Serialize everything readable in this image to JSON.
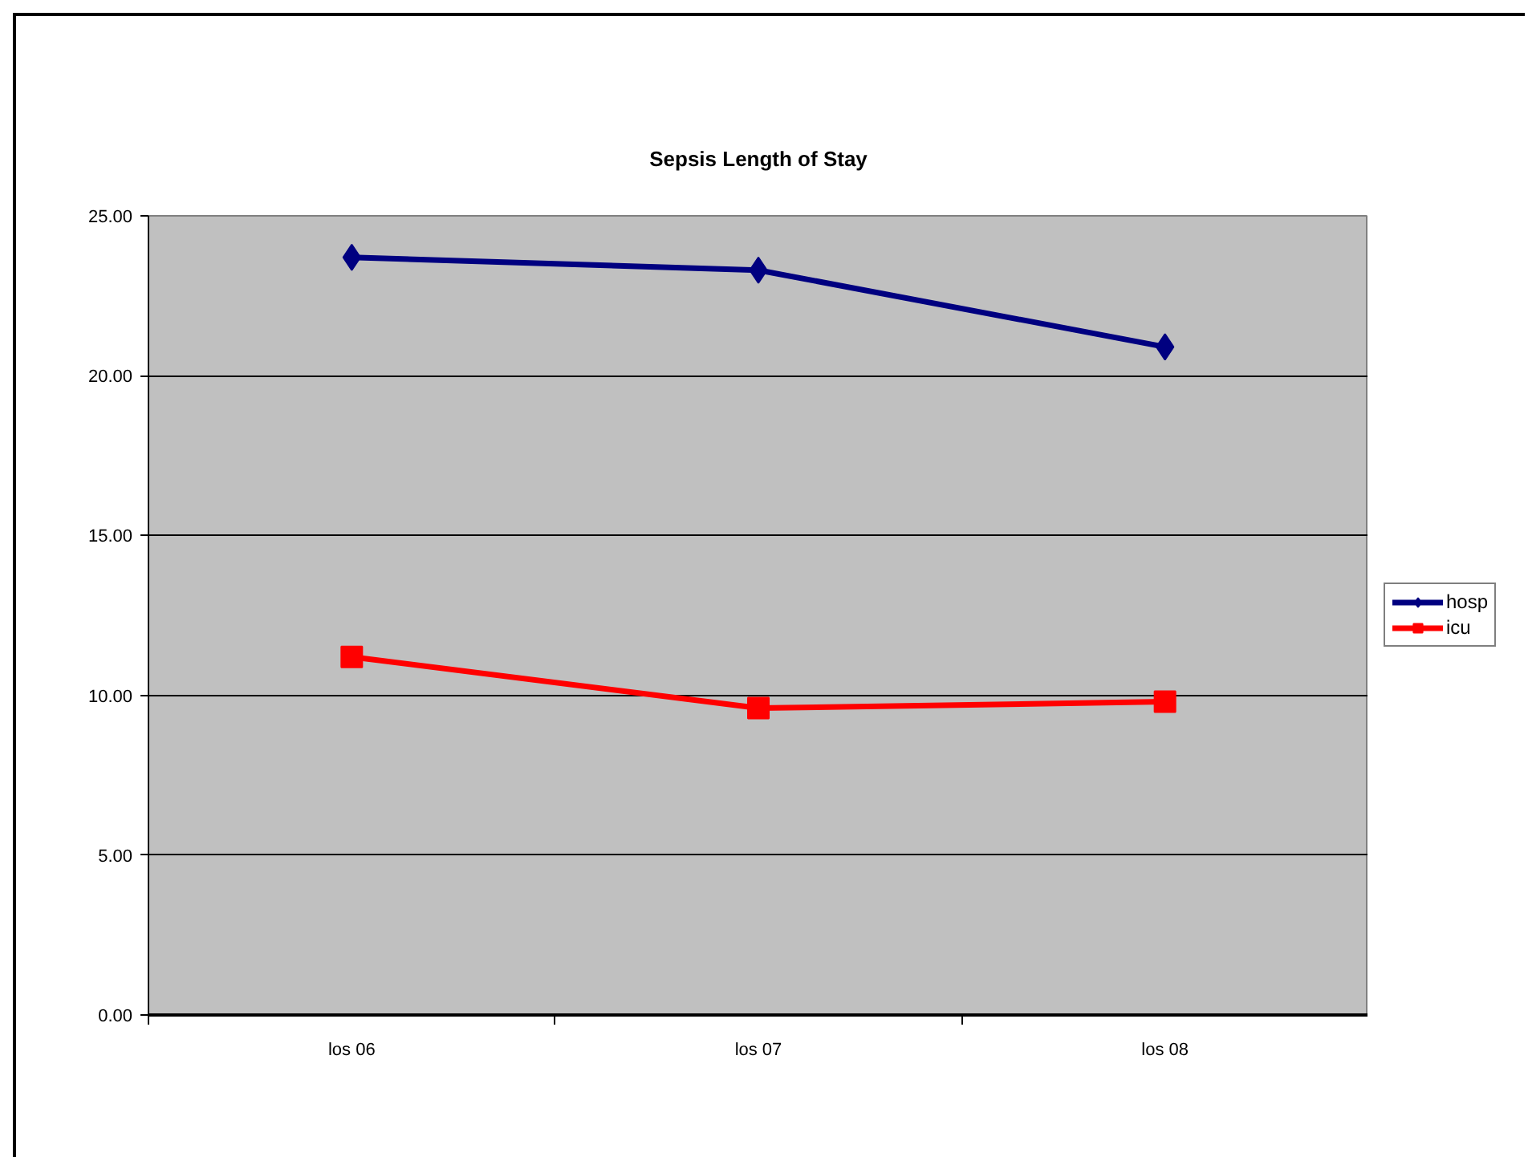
{
  "chart_data": {
    "type": "line",
    "title": "Sepsis Length of Stay",
    "categories": [
      "los 06",
      "los 07",
      "los 08"
    ],
    "series": [
      {
        "name": "hosp",
        "color": "#000080",
        "marker": "diamond",
        "values": [
          23.7,
          23.3,
          20.9
        ]
      },
      {
        "name": "icu",
        "color": "#ff0000",
        "marker": "square",
        "values": [
          11.2,
          9.6,
          9.8
        ]
      }
    ],
    "ylim": [
      0,
      25
    ],
    "yticks": [
      {
        "value": 0,
        "label": "0.00"
      },
      {
        "value": 5,
        "label": "5.00"
      },
      {
        "value": 10,
        "label": "10.00"
      },
      {
        "value": 15,
        "label": "15.00"
      },
      {
        "value": 20,
        "label": "20.00"
      },
      {
        "value": 25,
        "label": "25.00"
      }
    ],
    "grid": "y",
    "legend": "right",
    "line_style": "solid"
  }
}
